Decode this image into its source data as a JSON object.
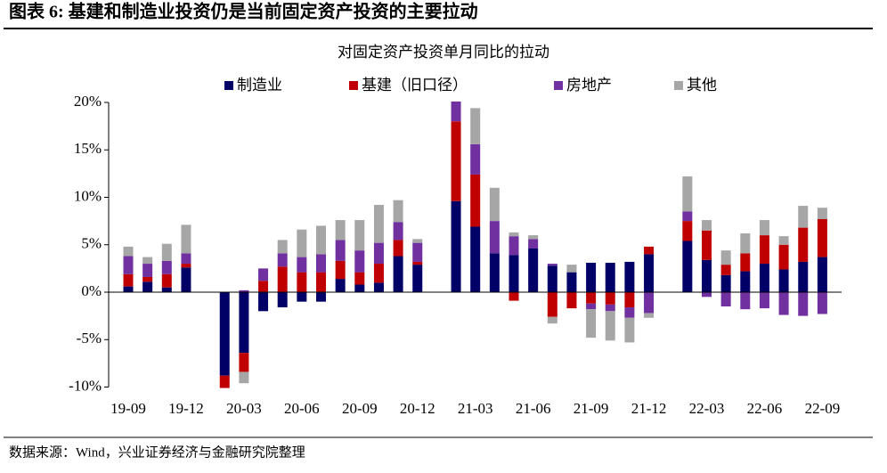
{
  "header": {
    "title": "图表 6: 基建和制造业投资仍是当前固定资产投资的主要拉动"
  },
  "chart_data": {
    "type": "stacked-bar",
    "title": "对固定资产投资单月同比的拉动",
    "categories": [
      "19-09",
      null,
      null,
      "19-12",
      null,
      null,
      "20-03",
      null,
      null,
      "20-06",
      null,
      null,
      "20-09",
      null,
      null,
      "20-12",
      null,
      null,
      "21-03",
      null,
      null,
      "21-06",
      null,
      null,
      "21-09",
      null,
      null,
      "21-12",
      null,
      null,
      "22-03",
      null,
      null,
      "22-06",
      null,
      null,
      "22-09"
    ],
    "series": [
      {
        "name": "制造业",
        "color": "#000066",
        "values": [
          0.6,
          1.1,
          0.5,
          2.6,
          null,
          -8.8,
          -6.4,
          -2.0,
          -1.6,
          -1.0,
          -1.0,
          1.4,
          0.8,
          1.0,
          3.8,
          2.9,
          null,
          9.6,
          6.9,
          4.1,
          3.9,
          4.6,
          2.8,
          2.1,
          3.1,
          3.1,
          3.2,
          4.0,
          null,
          5.4,
          3.4,
          1.8,
          2.2,
          3.0,
          2.4,
          3.2,
          3.7
        ]
      },
      {
        "name": "基建（旧口径）",
        "color": "#c00000",
        "values": [
          1.3,
          0.5,
          1.4,
          0.4,
          null,
          -1.3,
          -2.0,
          1.2,
          2.7,
          2.1,
          2.1,
          1.9,
          1.3,
          2.0,
          1.7,
          0.3,
          null,
          8.4,
          5.5,
          0,
          -0.9,
          0,
          -2.6,
          -1.7,
          -1.2,
          -1.3,
          -1.6,
          0.8,
          null,
          2.1,
          3.1,
          1.1,
          1.9,
          3.0,
          2.6,
          3.6,
          4.0
        ]
      },
      {
        "name": "房地产",
        "color": "#7030a0",
        "values": [
          1.9,
          1.4,
          1.4,
          1.1,
          null,
          0,
          0.2,
          1.3,
          1.4,
          1.6,
          1.9,
          2.2,
          2.3,
          2.2,
          1.9,
          2.0,
          null,
          2.1,
          3.2,
          3.4,
          2.0,
          1.0,
          0.2,
          0,
          -0.6,
          -0.7,
          -1.1,
          -2.2,
          null,
          1.0,
          -0.5,
          -1.5,
          -1.8,
          -1.7,
          -2.4,
          -2.5,
          -2.3
        ]
      },
      {
        "name": "其他",
        "color": "#a6a6a6",
        "values": [
          1.0,
          0.7,
          1.8,
          3.0,
          null,
          0,
          -1.2,
          0,
          1.4,
          2.9,
          3.0,
          2.1,
          3.2,
          4.0,
          2.3,
          0.4,
          null,
          0,
          3.8,
          3.5,
          0.4,
          0.4,
          -0.7,
          0.8,
          -3.0,
          -3.1,
          -2.6,
          -0.5,
          null,
          3.7,
          1.1,
          1.5,
          2.1,
          1.6,
          0.9,
          2.3,
          1.2
        ]
      }
    ],
    "ylim": [
      -10,
      20
    ],
    "yticks": [
      {
        "value": -10,
        "label": "-10%"
      },
      {
        "value": -5,
        "label": "-5%"
      },
      {
        "value": 0,
        "label": "0%"
      },
      {
        "value": 5,
        "label": "5%"
      },
      {
        "value": 10,
        "label": "10%"
      },
      {
        "value": 15,
        "label": "15%"
      },
      {
        "value": 20,
        "label": "20%"
      }
    ],
    "legend": "top"
  },
  "source": "数据来源：Wind，兴业证券经济与金融研究院整理"
}
